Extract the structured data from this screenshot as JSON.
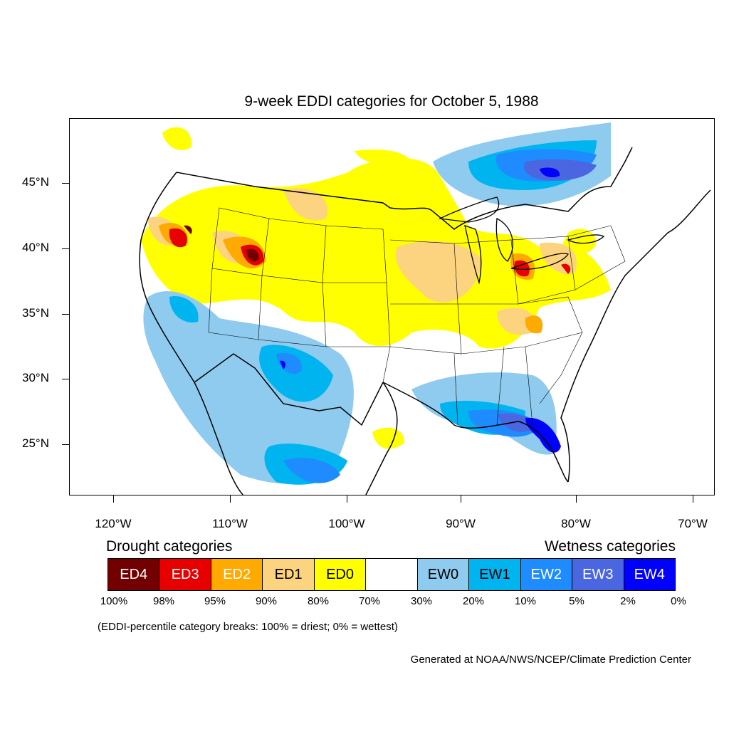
{
  "title": "9-week EDDI categories for October 5, 1988",
  "map": {
    "projection": "lat-lon, CONUS",
    "lat_labels": [
      "45°N",
      "40°N",
      "35°N",
      "30°N",
      "25°N"
    ],
    "lon_labels": [
      "120°W",
      "110°W",
      "100°W",
      "90°W",
      "80°W",
      "70°W"
    ],
    "regions": [
      {
        "area": "Northern Rockies / Wyoming",
        "category": "ED4"
      },
      {
        "area": "Northeastern California / Oregon",
        "category": "ED3"
      },
      {
        "area": "Northern Ohio / Michigan",
        "category": "ED3"
      },
      {
        "area": "Northern Plains / Dakotas",
        "category": "ED1"
      },
      {
        "area": "Midwest (Iowa, Illinois, Missouri)",
        "category": "ED1"
      },
      {
        "area": "Southwest (Arizona, New Mexico)",
        "category": "EW1"
      },
      {
        "area": "Florida / Gulf Coast",
        "category": "EW4"
      },
      {
        "area": "Great Lakes / Ontario",
        "category": "EW2"
      }
    ]
  },
  "legend": {
    "drought_label": "Drought categories",
    "wetness_label": "Wetness categories",
    "categories": [
      {
        "label": "ED4",
        "color": "#730000",
        "text_color": "#ffffff"
      },
      {
        "label": "ED3",
        "color": "#e60000",
        "text_color": "#ffffff"
      },
      {
        "label": "ED2",
        "color": "#ffaa00",
        "text_color": "#ffffff"
      },
      {
        "label": "ED1",
        "color": "#fcd37f",
        "text_color": "#000000"
      },
      {
        "label": "ED0",
        "color": "#ffff00",
        "text_color": "#000000"
      },
      {
        "label": "",
        "color": "#ffffff",
        "text_color": "#000000"
      },
      {
        "label": "EW0",
        "color": "#8ecbee",
        "text_color": "#000000"
      },
      {
        "label": "EW1",
        "color": "#00b4f0",
        "text_color": "#000000"
      },
      {
        "label": "EW2",
        "color": "#1e8cff",
        "text_color": "#ffffff"
      },
      {
        "label": "EW3",
        "color": "#4a66e0",
        "text_color": "#ffffff"
      },
      {
        "label": "EW4",
        "color": "#0000ff",
        "text_color": "#ffffff"
      }
    ],
    "breaks": [
      "100%",
      "98%",
      "95%",
      "90%",
      "80%",
      "70%",
      "30%",
      "20%",
      "10%",
      "5%",
      "2%",
      "0%"
    ]
  },
  "note": "(EDDI-percentile category breaks: 100% = driest; 0% = wettest)",
  "credit": "Generated at NOAA/NWS/NCEP/Climate Prediction Center"
}
